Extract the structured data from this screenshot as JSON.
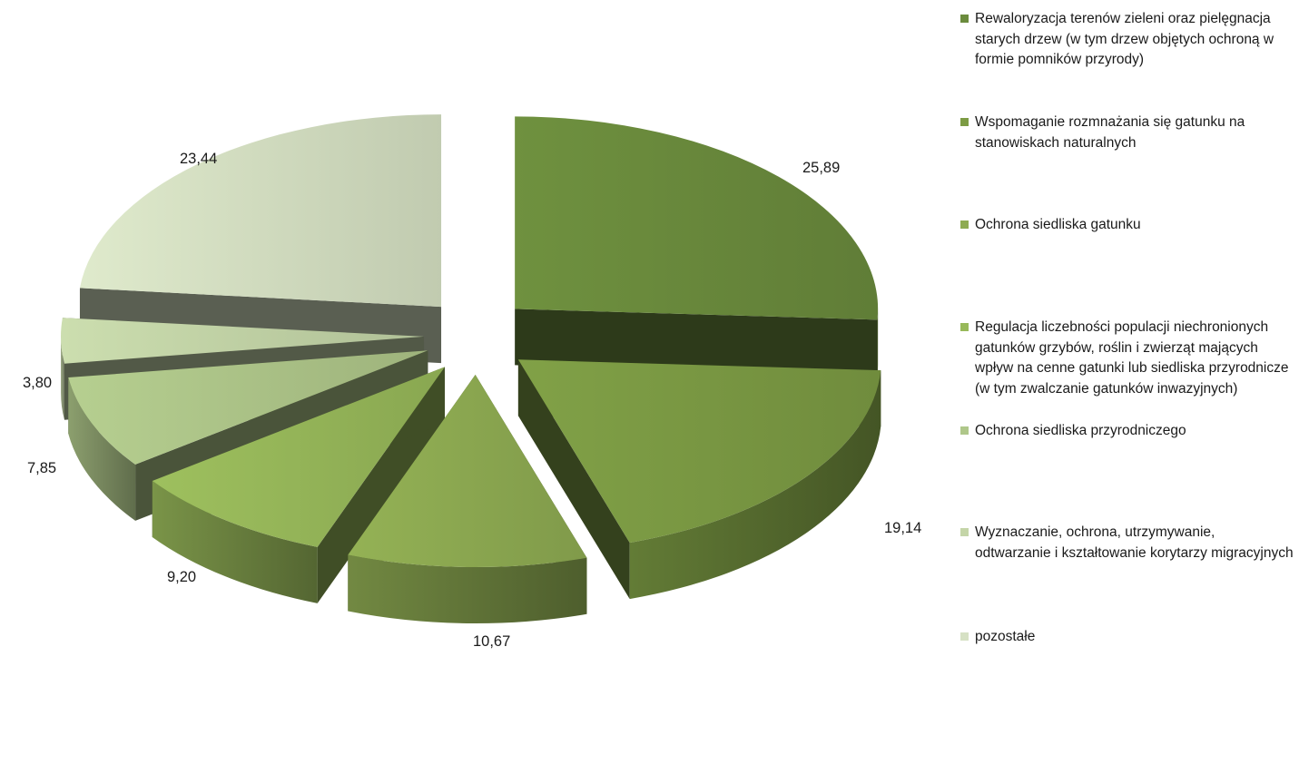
{
  "chart_data": {
    "type": "pie",
    "variant": "exploded-3d",
    "legend_position": "right",
    "slices": [
      {
        "label": "Rewaloryzacja terenów zieleni oraz pielęgnacja starych drzew (w tym drzew objętych ochroną w formie pomników przyrody)",
        "value": 25.89,
        "value_label": "25,89",
        "color": "#6b8b3d"
      },
      {
        "label": "Wspomaganie rozmnażania się gatunku na stanowiskach naturalnych",
        "value": 19.14,
        "value_label": "19,14",
        "color": "#7c9b44"
      },
      {
        "label": "Ochrona siedliska gatunku",
        "value": 10.67,
        "value_label": "10,67",
        "color": "#8eab52"
      },
      {
        "label": "Regulacja liczebności populacji niechronionych gatunków grzybów, roślin i zwierząt mających wpływ na cenne gatunki lub siedliska przyrodnicze (w tym zwalczanie gatunków inwazyjnych)",
        "value": 9.2,
        "value_label": "9,20",
        "color": "#98b95a"
      },
      {
        "label": "Ochrona siedliska przyrodniczego",
        "value": 7.85,
        "value_label": "7,85",
        "color": "#afc78a"
      },
      {
        "label": "Wyznaczanie, ochrona, utrzymywanie, odtwarzanie i kształtowanie korytarzy migracyjnych",
        "value": 3.8,
        "value_label": "3,80",
        "color": "#c4d5a8"
      },
      {
        "label": "pozostałe",
        "value": 23.44,
        "value_label": "23,44",
        "color": "#d6e1c4"
      }
    ]
  }
}
